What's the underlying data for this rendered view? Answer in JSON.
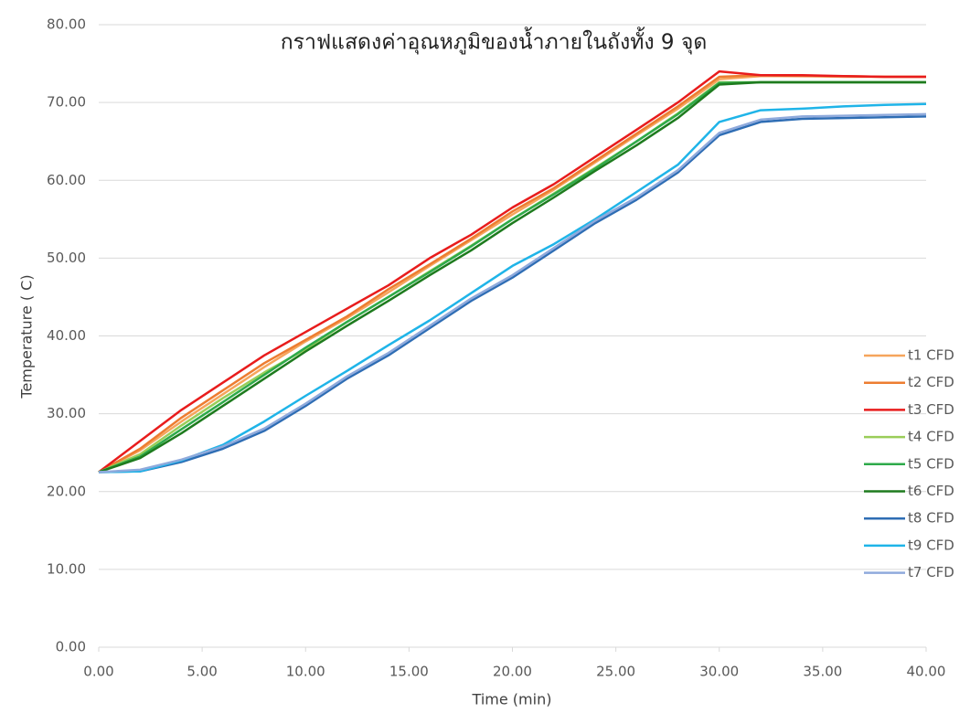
{
  "chart_data": {
    "type": "line",
    "title": "กราฟแสดงค่าอุณหภูมิของน้ำภายในถังทั้ง 9 จุด",
    "x_label": "Time (min)",
    "y_label": "Temperature ( C)",
    "x": [
      0,
      2,
      4,
      6,
      8,
      10,
      12,
      14,
      16,
      18,
      20,
      22,
      24,
      26,
      28,
      30,
      32,
      34,
      36,
      38,
      40
    ],
    "series": [
      {
        "name": "t1 CFD",
        "color": "#f6a55c",
        "values": [
          22.5,
          25.3,
          29,
          32.5,
          36,
          39.3,
          42.3,
          45.6,
          49,
          52.3,
          55.6,
          58.8,
          62.3,
          65.8,
          69.2,
          73,
          73.4,
          73.4,
          73.3,
          73.3,
          73.3
        ]
      },
      {
        "name": "t2 CFD",
        "color": "#ed7d31",
        "values": [
          22.5,
          25.5,
          29.5,
          33,
          36.5,
          39.5,
          42.5,
          46,
          49.2,
          52.5,
          56,
          59,
          62.5,
          66,
          69.5,
          73.3,
          73.5,
          73.4,
          73.4,
          73.3,
          73.3
        ]
      },
      {
        "name": "t3 CFD",
        "color": "#e81c1c",
        "values": [
          22.5,
          26.5,
          30.5,
          34,
          37.5,
          40.5,
          43.5,
          46.5,
          50,
          53,
          56.5,
          59.5,
          63,
          66.5,
          70,
          74,
          73.5,
          73.5,
          73.4,
          73.3,
          73.3
        ]
      },
      {
        "name": "t4 CFD",
        "color": "#9acd59",
        "values": [
          22.5,
          24.8,
          28.5,
          32,
          35.3,
          38.3,
          41.8,
          45,
          48.3,
          51.6,
          55,
          58.3,
          61.6,
          65,
          68.6,
          72.6,
          72.6,
          72.6,
          72.6,
          72.6,
          72.6
        ]
      },
      {
        "name": "t5 CFD",
        "color": "#2eaa4a",
        "values": [
          22.5,
          24.5,
          28,
          31.5,
          35,
          38.5,
          41.8,
          45,
          48.2,
          51.5,
          55,
          58.2,
          61.5,
          65,
          68.5,
          72.5,
          72.6,
          72.6,
          72.6,
          72.6,
          72.6
        ]
      },
      {
        "name": "t6 CFD",
        "color": "#1e7b1e",
        "values": [
          22.5,
          24.3,
          27.5,
          31,
          34.5,
          38,
          41.3,
          44.5,
          47.8,
          51,
          54.5,
          57.8,
          61.2,
          64.5,
          68,
          72.3,
          72.6,
          72.6,
          72.6,
          72.6,
          72.6
        ]
      },
      {
        "name": "t8 CFD",
        "color": "#2e6db4",
        "values": [
          22.5,
          22.6,
          23.8,
          25.5,
          27.8,
          31,
          34.5,
          37.5,
          41,
          44.5,
          47.5,
          51,
          54.5,
          57.5,
          61,
          65.8,
          67.5,
          67.9,
          68,
          68.1,
          68.2
        ]
      },
      {
        "name": "t9 CFD",
        "color": "#1fb4e8",
        "values": [
          22.5,
          22.6,
          24,
          26,
          29,
          32.3,
          35.5,
          38.8,
          42,
          45.5,
          49,
          51.8,
          55,
          58.5,
          62,
          67.5,
          69,
          69.2,
          69.5,
          69.7,
          69.8
        ]
      },
      {
        "name": "t7 CFD",
        "color": "#8faadc",
        "values": [
          22.5,
          22.8,
          24.1,
          25.8,
          28.1,
          31.3,
          34.8,
          37.8,
          41.3,
          44.8,
          47.8,
          51.3,
          54.8,
          57.8,
          61.3,
          66.1,
          67.8,
          68.2,
          68.3,
          68.4,
          68.5
        ]
      }
    ],
    "xlim": [
      0,
      40
    ],
    "xticks": [
      {
        "value": 0,
        "label": "0.00"
      },
      {
        "value": 5,
        "label": "5.00"
      },
      {
        "value": 10,
        "label": "10.00"
      },
      {
        "value": 15,
        "label": "15.00"
      },
      {
        "value": 20,
        "label": "20.00"
      },
      {
        "value": 25,
        "label": "25.00"
      },
      {
        "value": 30,
        "label": "30.00"
      },
      {
        "value": 35,
        "label": "35.00"
      },
      {
        "value": 40,
        "label": "40.00"
      }
    ],
    "ylim": [
      0,
      80
    ],
    "yticks": [
      {
        "value": 0,
        "label": "0.00"
      },
      {
        "value": 10,
        "label": "10.00"
      },
      {
        "value": 20,
        "label": "20.00"
      },
      {
        "value": 30,
        "label": "30.00"
      },
      {
        "value": 40,
        "label": "40.00"
      },
      {
        "value": 50,
        "label": "50.00"
      },
      {
        "value": 60,
        "label": "60.00"
      },
      {
        "value": 70,
        "label": "70.00"
      },
      {
        "value": 80,
        "label": "80.00"
      }
    ],
    "grid": true,
    "legend": "right"
  }
}
